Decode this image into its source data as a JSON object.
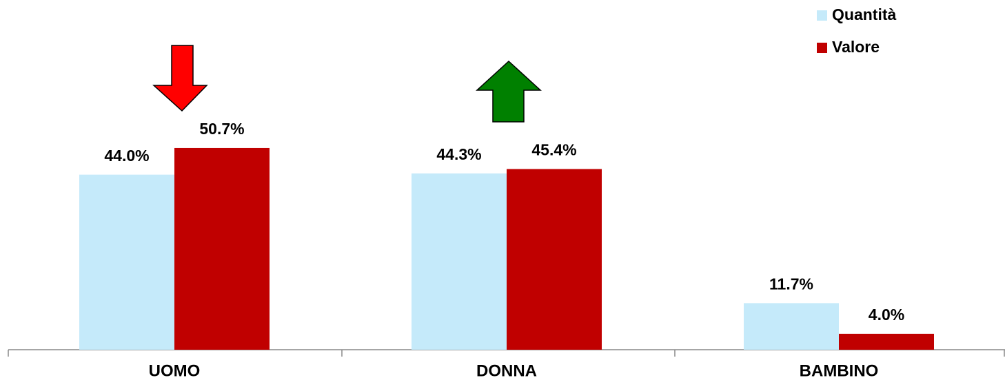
{
  "chart_data": {
    "type": "bar",
    "categories": [
      "UOMO",
      "DONNA",
      "BAMBINO"
    ],
    "series": [
      {
        "name": "Quantità",
        "color": "#c5eafa",
        "values": [
          44.0,
          44.3,
          11.7
        ],
        "value_labels": [
          "44.0%",
          "44.3%",
          "11.7%"
        ]
      },
      {
        "name": "Valore",
        "color": "#c00000",
        "values": [
          50.7,
          45.4,
          4.0
        ],
        "value_labels": [
          "50.7%",
          "45.4%",
          "4.0%"
        ]
      }
    ],
    "legend": "upper right"
  }
}
